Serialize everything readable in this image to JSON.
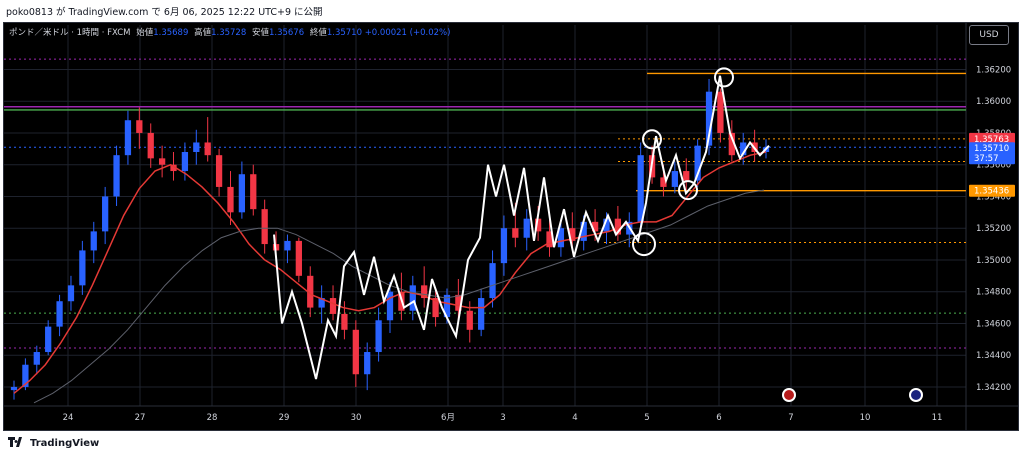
{
  "header": {
    "publish_text": "poko0813 が TradingView.com で 6月 06, 2025 12:22 UTC+9 に公開"
  },
  "legend": {
    "symbol": "ポンド／米ドル · 1時間 · FXCM",
    "open_label": "始値",
    "open": "1.35689",
    "high_label": "高値",
    "high": "1.35728",
    "low_label": "安値",
    "low": "1.35676",
    "close_label": "終値",
    "close": "1.35710",
    "change": "+0.00021 (+0.02%)"
  },
  "currency_button": "USD",
  "footer": {
    "brand": "TradingView"
  },
  "colors": {
    "background": "#000000",
    "candle_up": "#2962ff",
    "candle_down": "#f23645",
    "ma_fast": "#e53935",
    "ma_slow": "#5d606b",
    "orange": "#ff9800",
    "purple": "#9c27b0",
    "green": "#4caf50",
    "annotation": "#ffffff"
  },
  "chart_data": {
    "type": "candlestick",
    "title": "ポンド／米ドル · 1時間 · FXCM",
    "xlabel": "",
    "ylabel": "",
    "ylim": [
      1.3408,
      1.3648
    ],
    "yticks": [
      "1.36200",
      "1.36000",
      "1.35800",
      "1.35600",
      "1.35400",
      "1.35200",
      "1.35000",
      "1.34800",
      "1.34600",
      "1.34400",
      "1.34200"
    ],
    "xticks": [
      "24",
      "27",
      "28",
      "29",
      "30",
      "6月",
      "3",
      "4",
      "5",
      "6",
      "7",
      "10",
      "11"
    ],
    "grid": true,
    "price_labels": [
      {
        "text": "1.35763",
        "value": 1.35763,
        "color": "#f23645"
      },
      {
        "text": "1.35710",
        "value": 1.3571,
        "color": "#2962ff"
      },
      {
        "text": "37:57",
        "value": 1.35655,
        "color": "#2962ff"
      },
      {
        "text": "1.35436",
        "value": 1.35436,
        "color": "#ff9800"
      }
    ],
    "horizontal_levels": [
      {
        "value": 1.36265,
        "style": "dotted",
        "color": "#9c27b0"
      },
      {
        "value": 1.36175,
        "style": "solid",
        "color": "#ff9800"
      },
      {
        "value": 1.35965,
        "style": "solid",
        "color": "#9c27b0"
      },
      {
        "value": 1.35945,
        "style": "solid",
        "color": "#4caf50"
      },
      {
        "value": 1.35763,
        "style": "dotted",
        "color": "#ff9800"
      },
      {
        "value": 1.3571,
        "style": "dotted",
        "color": "#2962ff"
      },
      {
        "value": 1.3562,
        "style": "dotted",
        "color": "#ff9800"
      },
      {
        "value": 1.35436,
        "style": "solid",
        "color": "#ff9800"
      },
      {
        "value": 1.3511,
        "style": "dotted",
        "color": "#ff9800"
      },
      {
        "value": 1.34665,
        "style": "dotted",
        "color": "#4caf50"
      },
      {
        "value": 1.34445,
        "style": "dotted",
        "color": "#9c27b0"
      }
    ],
    "ohlc_sampled": [
      [
        1.3418,
        1.3424,
        1.3412,
        1.342
      ],
      [
        1.342,
        1.3438,
        1.3418,
        1.3434
      ],
      [
        1.3434,
        1.3446,
        1.3428,
        1.3442
      ],
      [
        1.3442,
        1.3462,
        1.344,
        1.3458
      ],
      [
        1.3458,
        1.3478,
        1.3452,
        1.3474
      ],
      [
        1.3474,
        1.349,
        1.3468,
        1.3484
      ],
      [
        1.3484,
        1.3512,
        1.3478,
        1.3506
      ],
      [
        1.3506,
        1.3524,
        1.3498,
        1.3518
      ],
      [
        1.3518,
        1.3546,
        1.351,
        1.354
      ],
      [
        1.354,
        1.3572,
        1.3534,
        1.3566
      ],
      [
        1.3566,
        1.3594,
        1.356,
        1.3588
      ],
      [
        1.3588,
        1.3596,
        1.357,
        1.358
      ],
      [
        1.358,
        1.3586,
        1.3558,
        1.3564
      ],
      [
        1.3564,
        1.3572,
        1.3552,
        1.356
      ],
      [
        1.356,
        1.3568,
        1.355,
        1.3556
      ],
      [
        1.3556,
        1.3574,
        1.355,
        1.3568
      ],
      [
        1.3568,
        1.3582,
        1.356,
        1.3574
      ],
      [
        1.3574,
        1.359,
        1.3562,
        1.3566
      ],
      [
        1.3566,
        1.357,
        1.354,
        1.3546
      ],
      [
        1.3546,
        1.3556,
        1.3522,
        1.353
      ],
      [
        1.353,
        1.3562,
        1.3526,
        1.3554
      ],
      [
        1.3554,
        1.356,
        1.3528,
        1.3532
      ],
      [
        1.3532,
        1.3538,
        1.3504,
        1.351
      ],
      [
        1.351,
        1.3518,
        1.3498,
        1.3506
      ],
      [
        1.3506,
        1.3516,
        1.3498,
        1.3512
      ],
      [
        1.3512,
        1.3514,
        1.3486,
        1.349
      ],
      [
        1.349,
        1.3496,
        1.3464,
        1.347
      ],
      [
        1.347,
        1.3484,
        1.346,
        1.3476
      ],
      [
        1.3476,
        1.3484,
        1.3462,
        1.3466
      ],
      [
        1.3466,
        1.3474,
        1.345,
        1.3456
      ],
      [
        1.3456,
        1.3462,
        1.342,
        1.3428
      ],
      [
        1.3428,
        1.3448,
        1.3418,
        1.3442
      ],
      [
        1.3442,
        1.347,
        1.3436,
        1.3462
      ],
      [
        1.3462,
        1.3486,
        1.3454,
        1.348
      ],
      [
        1.348,
        1.3492,
        1.3462,
        1.3468
      ],
      [
        1.3468,
        1.349,
        1.3462,
        1.3484
      ],
      [
        1.3484,
        1.3496,
        1.347,
        1.3476
      ],
      [
        1.3476,
        1.3482,
        1.3458,
        1.3464
      ],
      [
        1.3464,
        1.3482,
        1.346,
        1.3478
      ],
      [
        1.3478,
        1.3488,
        1.3462,
        1.3468
      ],
      [
        1.3468,
        1.3474,
        1.3448,
        1.3456
      ],
      [
        1.3456,
        1.3482,
        1.3452,
        1.3476
      ],
      [
        1.3476,
        1.3506,
        1.347,
        1.3498
      ],
      [
        1.3498,
        1.3528,
        1.349,
        1.352
      ],
      [
        1.352,
        1.3536,
        1.3508,
        1.3514
      ],
      [
        1.3514,
        1.3532,
        1.3506,
        1.3526
      ],
      [
        1.3526,
        1.3534,
        1.3512,
        1.3518
      ],
      [
        1.3518,
        1.3526,
        1.3502,
        1.3508
      ],
      [
        1.3508,
        1.3524,
        1.3502,
        1.352
      ],
      [
        1.352,
        1.353,
        1.3508,
        1.3512
      ],
      [
        1.3512,
        1.3528,
        1.3506,
        1.3524
      ],
      [
        1.3524,
        1.3532,
        1.3512,
        1.3518
      ],
      [
        1.3518,
        1.353,
        1.351,
        1.3526
      ],
      [
        1.3526,
        1.3534,
        1.3512,
        1.3516
      ],
      [
        1.3516,
        1.353,
        1.3508,
        1.3524
      ],
      [
        1.3524,
        1.3574,
        1.3518,
        1.3566
      ],
      [
        1.3566,
        1.3572,
        1.3548,
        1.3552
      ],
      [
        1.3552,
        1.356,
        1.354,
        1.3546
      ],
      [
        1.3546,
        1.3562,
        1.3542,
        1.3556
      ],
      [
        1.3556,
        1.3564,
        1.3544,
        1.355
      ],
      [
        1.355,
        1.3576,
        1.3546,
        1.3572
      ],
      [
        1.3572,
        1.3614,
        1.3566,
        1.3606
      ],
      [
        1.3606,
        1.3608,
        1.3574,
        1.358
      ],
      [
        1.358,
        1.3588,
        1.3562,
        1.3566
      ],
      [
        1.3566,
        1.358,
        1.356,
        1.3574
      ],
      [
        1.3574,
        1.3582,
        1.3562,
        1.3568
      ],
      [
        1.3568,
        1.3576,
        1.3564,
        1.3571
      ]
    ],
    "series": [
      {
        "values_ref": "ohlc_sampled",
        "type": "candlestick"
      },
      {
        "type": "line",
        "color": "#e53935",
        "values": [
          1.3416,
          1.3424,
          1.3434,
          1.3448,
          1.3464,
          1.3484,
          1.3506,
          1.3528,
          1.3545,
          1.3556,
          1.356,
          1.3554,
          1.3546,
          1.3536,
          1.3524,
          1.351,
          1.35,
          1.3494,
          1.3486,
          1.3478,
          1.3474,
          1.347,
          1.3468,
          1.347,
          1.3476,
          1.348,
          1.3478,
          1.3474,
          1.3472,
          1.347,
          1.347,
          1.3478,
          1.3492,
          1.3504,
          1.351,
          1.3512,
          1.3514,
          1.3516,
          1.3518,
          1.3522,
          1.3524,
          1.3524,
          1.3528,
          1.354,
          1.3552,
          1.3558,
          1.3562,
          1.3566,
          1.3568
        ]
      },
      {
        "type": "line",
        "color": "#5d606b",
        "values": [
          1.341,
          1.3416,
          1.3424,
          1.3434,
          1.3444,
          1.3456,
          1.347,
          1.3484,
          1.3496,
          1.3506,
          1.3514,
          1.3518,
          1.352,
          1.352,
          1.3516,
          1.351,
          1.3504,
          1.3496,
          1.349,
          1.3484,
          1.348,
          1.3478,
          1.3476,
          1.3478,
          1.3482,
          1.3486,
          1.349,
          1.3494,
          1.3498,
          1.3502,
          1.3506,
          1.351,
          1.3514,
          1.3518,
          1.3522,
          1.3528,
          1.3534,
          1.3538,
          1.3542,
          1.3544
        ]
      }
    ],
    "annotation_circles": [
      {
        "x_index": 49,
        "value": 1.351
      },
      {
        "x_index": 55,
        "value": 1.3576
      },
      {
        "x_index": 57,
        "value": 1.3544
      },
      {
        "x_index": 61,
        "value": 1.3615
      }
    ]
  }
}
